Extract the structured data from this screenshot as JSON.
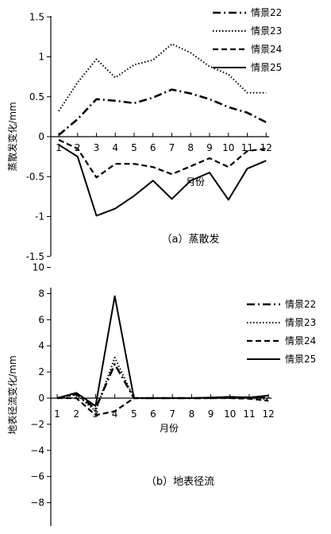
{
  "chart_data": [
    {
      "type": "line",
      "xlabel": "月份",
      "ylabel": "蒸散发变化/mm",
      "caption": "（a）蒸散发",
      "x": [
        1,
        2,
        3,
        4,
        5,
        6,
        7,
        8,
        9,
        10,
        11,
        12
      ],
      "ylim": [
        -1.5,
        1.5
      ],
      "yticks": [
        "-1.5",
        "-1",
        "-0.5",
        "0",
        "0.5",
        "1",
        "1.5"
      ],
      "ytick_values": [
        -1.5,
        -1,
        -0.5,
        0,
        0.5,
        1,
        1.5
      ],
      "legend_position": "top-right",
      "series": [
        {
          "name": "情景22",
          "style": "dashdot",
          "values": [
            0.02,
            0.22,
            0.47,
            0.45,
            0.42,
            0.49,
            0.59,
            0.54,
            0.47,
            0.37,
            0.3,
            0.18
          ]
        },
        {
          "name": "情景23",
          "style": "dotted",
          "values": [
            0.32,
            0.68,
            0.97,
            0.74,
            0.9,
            0.96,
            1.16,
            1.05,
            0.88,
            0.78,
            0.55,
            0.55
          ]
        },
        {
          "name": "情景24",
          "style": "dashed",
          "values": [
            -0.04,
            -0.15,
            -0.51,
            -0.34,
            -0.34,
            -0.38,
            -0.47,
            -0.37,
            -0.27,
            -0.38,
            -0.18,
            -0.15
          ]
        },
        {
          "name": "情景25",
          "style": "solid",
          "values": [
            -0.1,
            -0.25,
            -0.99,
            -0.9,
            -0.74,
            -0.55,
            -0.78,
            -0.55,
            -0.45,
            -0.79,
            -0.4,
            -0.3
          ]
        }
      ]
    },
    {
      "type": "line",
      "xlabel": "月份",
      "ylabel": "地表径流变化/mm",
      "caption": "（b）地表径流",
      "x": [
        1,
        2,
        3,
        4,
        5,
        6,
        7,
        8,
        9,
        10,
        11,
        12
      ],
      "ylim": [
        -8,
        10
      ],
      "yticks": [
        "−8",
        "−6",
        "−4",
        "−2",
        "0",
        "2",
        "4",
        "6",
        "8",
        "10"
      ],
      "ytick_values": [
        -8,
        -6,
        -4,
        -2,
        0,
        2,
        4,
        6,
        8,
        10
      ],
      "legend_position": "top-right",
      "series": [
        {
          "name": "情景22",
          "style": "dashdot",
          "values": [
            0.0,
            0.3,
            -0.8,
            2.6,
            0.0,
            0.0,
            0.0,
            0.0,
            0.0,
            0.05,
            0.05,
            0.1
          ]
        },
        {
          "name": "情景23",
          "style": "dotted",
          "values": [
            0.0,
            0.3,
            -1.0,
            3.1,
            0.0,
            0.0,
            0.0,
            0.0,
            0.0,
            0.0,
            0.0,
            -0.1
          ]
        },
        {
          "name": "情景24",
          "style": "dashed",
          "values": [
            0.0,
            0.0,
            -1.3,
            -1.0,
            0.0,
            0.0,
            0.0,
            0.0,
            0.0,
            0.0,
            -0.05,
            -0.2
          ]
        },
        {
          "name": "情景25",
          "style": "solid",
          "values": [
            0.0,
            0.4,
            -0.6,
            7.8,
            0.0,
            0.0,
            0.0,
            0.0,
            0.05,
            0.1,
            0.05,
            0.2
          ]
        }
      ]
    }
  ]
}
